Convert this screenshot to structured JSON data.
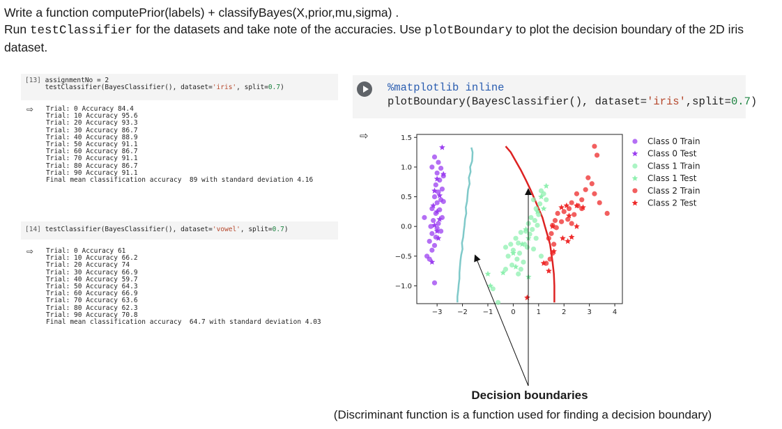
{
  "intro": {
    "line1": "Write a function computePrior(labels) + classifyBayes(X,prior,mu,sigma) .",
    "line2_pre": "Run ",
    "line2_code": "testClassifier",
    "line2_post": " for the datasets and take note of the accuracies. Use ",
    "line2_code2": "plotBoundary",
    "line2_post2": " to plot the decision boundary of the 2D iris dataset."
  },
  "cell13": {
    "prompt": "[13]",
    "line1": "assignmentNo = 2",
    "line2_pre": "testClassifier(BayesClassifier(), dataset=",
    "line2_str": "'iris'",
    "line2_mid": ", split=",
    "line2_num": "0.7",
    "line2_post": ")",
    "output": [
      "Trial: 0 Accuracy 84.4",
      "Trial: 10 Accuracy 95.6",
      "Trial: 20 Accuracy 93.3",
      "Trial: 30 Accuracy 86.7",
      "Trial: 40 Accuracy 88.9",
      "Trial: 50 Accuracy 91.1",
      "Trial: 60 Accuracy 86.7",
      "Trial: 70 Accuracy 91.1",
      "Trial: 80 Accuracy 86.7",
      "Trial: 90 Accuracy 91.1",
      "Final mean classification accuracy  89 with standard deviation 4.16"
    ]
  },
  "cell14": {
    "prompt": "[14]",
    "line1_pre": "testClassifier(BayesClassifier(), dataset=",
    "line1_str": "'vowel'",
    "line1_mid": ", split=",
    "line1_num": "0.7",
    "line1_post": ")",
    "output": [
      "Trial: 0 Accuracy 61",
      "Trial: 10 Accuracy 66.2",
      "Trial: 20 Accuracy 74",
      "Trial: 30 Accuracy 66.9",
      "Trial: 40 Accuracy 59.7",
      "Trial: 50 Accuracy 64.3",
      "Trial: 60 Accuracy 66.9",
      "Trial: 70 Accuracy 63.6",
      "Trial: 80 Accuracy 62.3",
      "Trial: 90 Accuracy 70.8",
      "Final mean classification accuracy  64.7 with standard deviation 4.03"
    ]
  },
  "plotcell": {
    "line1": "%matplotlib inline",
    "line2_pre": "plotBoundary(BayesClassifier(), dataset=",
    "line2_str": "'iris'",
    "line2_mid": ",split=",
    "line2_num": "0.7",
    "line2_post": ")"
  },
  "output_icon": "⇨",
  "annotation": {
    "title": "Decision boundaries",
    "subtitle": "(Discriminant function is a function used for finding a decision boundary)"
  },
  "colors": {
    "class0": "#9b3ff0",
    "class1": "#8ff0b0",
    "class2": "#ee2a2a",
    "boundary01": "#7fc9c9",
    "boundary12": "#dd2222"
  },
  "chart_data": {
    "type": "scatter",
    "xlim": [
      -3.8,
      4.3
    ],
    "ylim": [
      -1.3,
      1.55
    ],
    "xticks": [
      -3,
      -2,
      -1,
      0,
      1,
      2,
      3,
      4
    ],
    "xtick_labels": [
      "−3",
      "−2",
      "−1",
      "0",
      "1",
      "2",
      "3",
      "4"
    ],
    "yticks": [
      -1.0,
      -0.5,
      0.0,
      0.5,
      1.0,
      1.5
    ],
    "ytick_labels": [
      "−1.0",
      "−0.5",
      "0.0",
      "0.5",
      "1.0",
      "1.5"
    ],
    "legend_position": "outside-right",
    "grid": false,
    "series": [
      {
        "name": "Class 0 Train",
        "marker": "circle",
        "color": "#9b3ff0",
        "points": [
          [
            -3.1,
            1.17
          ],
          [
            -2.95,
            1.08
          ],
          [
            -3.2,
            1.0
          ],
          [
            -2.85,
            0.98
          ],
          [
            -3.0,
            0.9
          ],
          [
            -2.75,
            0.85
          ],
          [
            -2.9,
            0.78
          ],
          [
            -3.05,
            0.7
          ],
          [
            -2.8,
            0.63
          ],
          [
            -2.95,
            0.58
          ],
          [
            -3.1,
            0.5
          ],
          [
            -2.85,
            0.45
          ],
          [
            -3.0,
            0.4
          ],
          [
            -2.75,
            0.42
          ],
          [
            -3.2,
            0.3
          ],
          [
            -2.9,
            0.28
          ],
          [
            -3.05,
            0.22
          ],
          [
            -2.8,
            0.15
          ],
          [
            -3.5,
            0.15
          ],
          [
            -3.15,
            0.1
          ],
          [
            -2.95,
            0.05
          ],
          [
            -3.25,
            0.0
          ],
          [
            -3.0,
            -0.03
          ],
          [
            -2.85,
            -0.08
          ],
          [
            -3.2,
            -0.12
          ],
          [
            -3.05,
            -0.18
          ],
          [
            -3.3,
            -0.25
          ],
          [
            -3.1,
            -0.32
          ],
          [
            -3.2,
            -0.4
          ],
          [
            -3.4,
            -0.5
          ],
          [
            -3.3,
            -0.55
          ],
          [
            -3.1,
            -0.95
          ]
        ]
      },
      {
        "name": "Class 0 Test",
        "marker": "star",
        "color": "#9b3ff0",
        "points": [
          [
            -2.8,
            1.33
          ],
          [
            -3.0,
            0.8
          ],
          [
            -2.75,
            0.88
          ],
          [
            -3.1,
            0.6
          ],
          [
            -2.9,
            0.52
          ],
          [
            -3.15,
            0.35
          ],
          [
            -3.0,
            0.25
          ],
          [
            -2.9,
            0.12
          ],
          [
            -3.1,
            0.02
          ],
          [
            -3.0,
            -0.08
          ],
          [
            -2.95,
            -0.2
          ],
          [
            -3.2,
            -0.6
          ]
        ]
      },
      {
        "name": "Class 1 Train",
        "marker": "circle",
        "color": "#8ff0b0",
        "points": [
          [
            0.8,
            0.45
          ],
          [
            1.05,
            0.38
          ],
          [
            0.9,
            0.3
          ],
          [
            1.2,
            0.55
          ],
          [
            1.0,
            0.2
          ],
          [
            0.7,
            0.15
          ],
          [
            0.85,
            0.1
          ],
          [
            0.6,
            0.05
          ],
          [
            0.95,
            0.02
          ],
          [
            0.75,
            -0.05
          ],
          [
            0.5,
            -0.08
          ],
          [
            0.3,
            -0.1
          ],
          [
            0.65,
            -0.13
          ],
          [
            0.1,
            -0.2
          ],
          [
            0.2,
            -0.28
          ],
          [
            -0.1,
            -0.3
          ],
          [
            0.45,
            -0.3
          ],
          [
            0.55,
            -0.35
          ],
          [
            0.8,
            -0.38
          ],
          [
            -0.3,
            -0.35
          ],
          [
            0.0,
            -0.4
          ],
          [
            0.25,
            -0.45
          ],
          [
            -0.2,
            -0.5
          ],
          [
            0.15,
            -0.55
          ],
          [
            0.4,
            -0.6
          ],
          [
            -0.05,
            -0.65
          ],
          [
            0.3,
            -0.72
          ],
          [
            -0.3,
            -0.72
          ],
          [
            0.2,
            -0.8
          ],
          [
            1.3,
            0.45
          ],
          [
            1.1,
            0.6
          ],
          [
            -0.8,
            -1.05
          ],
          [
            -0.6,
            -1.28
          ],
          [
            1.1,
            -0.5
          ],
          [
            0.9,
            -0.2
          ]
        ]
      },
      {
        "name": "Class 1 Test",
        "marker": "star",
        "color": "#8ff0b0",
        "points": [
          [
            1.3,
            0.68
          ],
          [
            1.1,
            0.5
          ],
          [
            0.95,
            0.25
          ],
          [
            0.5,
            -0.05
          ],
          [
            0.6,
            -0.2
          ],
          [
            0.35,
            -0.3
          ],
          [
            0.0,
            -0.45
          ],
          [
            0.1,
            -0.68
          ],
          [
            -0.4,
            -0.78
          ],
          [
            0.6,
            -0.85
          ],
          [
            -1.0,
            -0.8
          ],
          [
            -0.9,
            -1.0
          ],
          [
            1.2,
            0.3
          ]
        ]
      },
      {
        "name": "Class 2 Train",
        "marker": "circle",
        "color": "#ee2a2a",
        "points": [
          [
            3.2,
            1.35
          ],
          [
            3.3,
            1.2
          ],
          [
            2.95,
            0.82
          ],
          [
            3.1,
            0.72
          ],
          [
            2.85,
            0.62
          ],
          [
            2.5,
            0.55
          ],
          [
            2.7,
            0.45
          ],
          [
            2.3,
            0.4
          ],
          [
            2.55,
            0.35
          ],
          [
            2.2,
            0.3
          ],
          [
            2.4,
            0.2
          ],
          [
            2.0,
            0.25
          ],
          [
            1.75,
            0.22
          ],
          [
            2.15,
            0.12
          ],
          [
            1.9,
            0.08
          ],
          [
            2.3,
            0.05
          ],
          [
            1.65,
            0.1
          ],
          [
            1.55,
            0.02
          ],
          [
            1.7,
            -0.02
          ],
          [
            1.5,
            -0.12
          ],
          [
            1.4,
            -0.2
          ],
          [
            1.6,
            -0.3
          ],
          [
            1.55,
            -0.45
          ],
          [
            1.45,
            -0.55
          ],
          [
            1.3,
            -0.62
          ],
          [
            3.2,
            0.55
          ],
          [
            3.7,
            0.22
          ],
          [
            3.4,
            0.4
          ],
          [
            2.7,
            0.3
          ]
        ]
      },
      {
        "name": "Class 2 Test",
        "marker": "star",
        "color": "#ee2a2a",
        "points": [
          [
            2.1,
            0.35
          ],
          [
            2.5,
            0.35
          ],
          [
            2.75,
            0.32
          ],
          [
            1.9,
            0.32
          ],
          [
            2.2,
            0.18
          ],
          [
            1.55,
            0.0
          ],
          [
            2.5,
            0.0
          ],
          [
            2.3,
            -0.18
          ],
          [
            1.95,
            -0.2
          ],
          [
            2.15,
            -0.25
          ],
          [
            1.6,
            -0.42
          ],
          [
            1.2,
            -0.62
          ],
          [
            1.4,
            -0.75
          ],
          [
            0.55,
            -1.2
          ]
        ]
      }
    ],
    "boundaries": [
      {
        "name": "boundary-0-1",
        "color": "#7fc9c9",
        "points": [
          [
            -1.65,
            1.33
          ],
          [
            -1.6,
            1.25
          ],
          [
            -1.62,
            1.1
          ],
          [
            -1.7,
            1.0
          ],
          [
            -1.68,
            0.92
          ],
          [
            -1.75,
            0.82
          ],
          [
            -1.72,
            0.72
          ],
          [
            -1.78,
            0.62
          ],
          [
            -1.8,
            0.52
          ],
          [
            -1.82,
            0.42
          ],
          [
            -1.87,
            0.32
          ],
          [
            -1.85,
            0.22
          ],
          [
            -1.9,
            0.12
          ],
          [
            -1.92,
            0.02
          ],
          [
            -1.95,
            -0.08
          ],
          [
            -1.97,
            -0.18
          ],
          [
            -2.02,
            -0.28
          ],
          [
            -2.0,
            -0.38
          ],
          [
            -2.05,
            -0.48
          ],
          [
            -2.08,
            -0.58
          ],
          [
            -2.1,
            -0.68
          ],
          [
            -2.12,
            -0.78
          ],
          [
            -2.12,
            -0.88
          ],
          [
            -2.15,
            -0.98
          ],
          [
            -2.17,
            -1.08
          ],
          [
            -2.2,
            -1.18
          ],
          [
            -2.2,
            -1.28
          ]
        ]
      },
      {
        "name": "boundary-1-2",
        "color": "#dd2222",
        "points": [
          [
            -0.3,
            1.35
          ],
          [
            -0.1,
            1.25
          ],
          [
            0.1,
            1.1
          ],
          [
            0.3,
            0.95
          ],
          [
            0.5,
            0.78
          ],
          [
            0.7,
            0.6
          ],
          [
            0.85,
            0.45
          ],
          [
            1.0,
            0.3
          ],
          [
            1.15,
            0.15
          ],
          [
            1.25,
            0.0
          ],
          [
            1.35,
            -0.15
          ],
          [
            1.45,
            -0.3
          ],
          [
            1.5,
            -0.45
          ],
          [
            1.55,
            -0.6
          ],
          [
            1.6,
            -0.8
          ],
          [
            1.62,
            -1.0
          ],
          [
            1.62,
            -1.15
          ],
          [
            1.62,
            -1.28
          ]
        ]
      }
    ]
  }
}
